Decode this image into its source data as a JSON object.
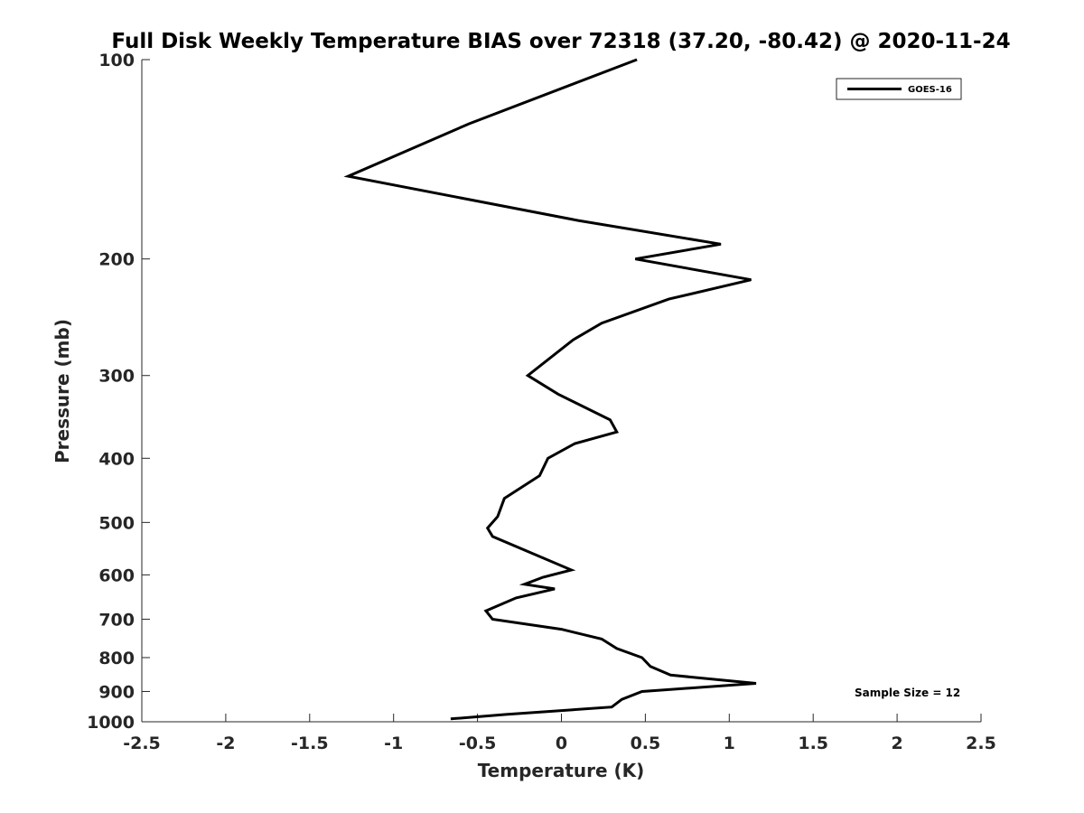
{
  "chart_data": {
    "type": "line",
    "title": "Full Disk Weekly Temperature BIAS over 72318 (37.20, -80.42) @ 2020-11-24",
    "xlabel": "Temperature (K)",
    "ylabel": "Pressure (mb)",
    "xlim": [
      -2.5,
      2.5
    ],
    "ylim": [
      100,
      1000
    ],
    "y_scale": "log",
    "y_reversed": true,
    "xticks": [
      -2.5,
      -2,
      -1.5,
      -1,
      -0.5,
      0,
      0.5,
      1,
      1.5,
      2,
      2.5
    ],
    "xtick_labels": [
      "-2.5",
      "-2",
      "-1.5",
      "-1",
      "-0.5",
      "0",
      "0.5",
      "1",
      "1.5",
      "2",
      "2.5"
    ],
    "yticks": [
      100,
      200,
      300,
      400,
      500,
      600,
      700,
      800,
      900,
      1000
    ],
    "ytick_labels": [
      "100",
      "200",
      "300",
      "400",
      "500",
      "600",
      "700",
      "800",
      "900",
      "1000"
    ],
    "grid": false,
    "legend_position": "top-right",
    "series": [
      {
        "name": "GOES-16",
        "color": "#000000",
        "points": [
          {
            "x": 0.45,
            "p": 100
          },
          {
            "x": -0.55,
            "p": 125
          },
          {
            "x": -1.27,
            "p": 150
          },
          {
            "x": 0.1,
            "p": 175
          },
          {
            "x": 0.95,
            "p": 190
          },
          {
            "x": 0.44,
            "p": 200
          },
          {
            "x": 1.13,
            "p": 215
          },
          {
            "x": 0.64,
            "p": 230
          },
          {
            "x": 0.24,
            "p": 250
          },
          {
            "x": 0.07,
            "p": 265
          },
          {
            "x": -0.2,
            "p": 300
          },
          {
            "x": -0.02,
            "p": 320
          },
          {
            "x": 0.29,
            "p": 350
          },
          {
            "x": 0.33,
            "p": 365
          },
          {
            "x": 0.08,
            "p": 380
          },
          {
            "x": -0.08,
            "p": 400
          },
          {
            "x": -0.13,
            "p": 425
          },
          {
            "x": -0.34,
            "p": 460
          },
          {
            "x": -0.38,
            "p": 490
          },
          {
            "x": -0.44,
            "p": 510
          },
          {
            "x": -0.41,
            "p": 525
          },
          {
            "x": 0.06,
            "p": 590
          },
          {
            "x": -0.11,
            "p": 605
          },
          {
            "x": -0.22,
            "p": 620
          },
          {
            "x": -0.04,
            "p": 630
          },
          {
            "x": -0.27,
            "p": 650
          },
          {
            "x": -0.45,
            "p": 680
          },
          {
            "x": -0.41,
            "p": 700
          },
          {
            "x": 0.0,
            "p": 725
          },
          {
            "x": 0.24,
            "p": 750
          },
          {
            "x": 0.33,
            "p": 775
          },
          {
            "x": 0.48,
            "p": 800
          },
          {
            "x": 0.53,
            "p": 825
          },
          {
            "x": 0.65,
            "p": 850
          },
          {
            "x": 1.16,
            "p": 875
          },
          {
            "x": 0.48,
            "p": 900
          },
          {
            "x": 0.36,
            "p": 925
          },
          {
            "x": 0.3,
            "p": 950
          },
          {
            "x": -0.33,
            "p": 975
          },
          {
            "x": -0.66,
            "p": 990
          }
        ]
      }
    ],
    "annotations": [
      {
        "text": "Sample Size = 12",
        "position": "bottom-right"
      }
    ]
  }
}
